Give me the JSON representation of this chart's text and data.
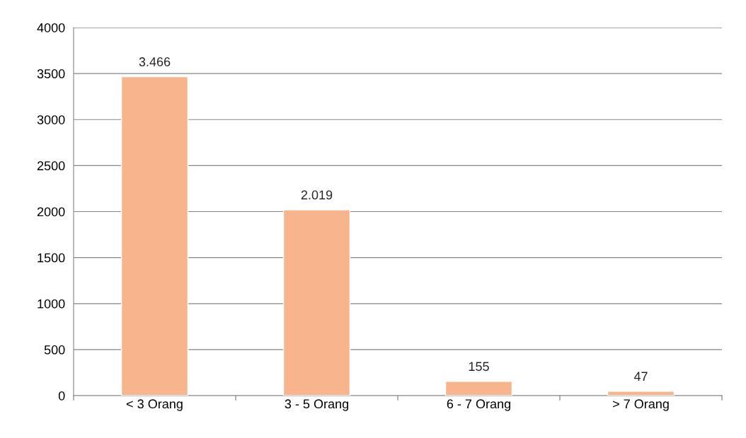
{
  "chart_data": {
    "type": "bar",
    "categories": [
      "< 3 Orang",
      "3 - 5 Orang",
      "6 - 7 Orang",
      "> 7 Orang"
    ],
    "values": [
      3466,
      2019,
      155,
      47
    ],
    "value_labels": [
      "3.466",
      "2.019",
      "155",
      "47"
    ],
    "color": "#f8b48c",
    "ylim": [
      0,
      4000
    ],
    "yticks": [
      0,
      500,
      1000,
      1500,
      2000,
      2500,
      3000,
      3500,
      4000
    ],
    "grid": "y",
    "legend": false
  }
}
